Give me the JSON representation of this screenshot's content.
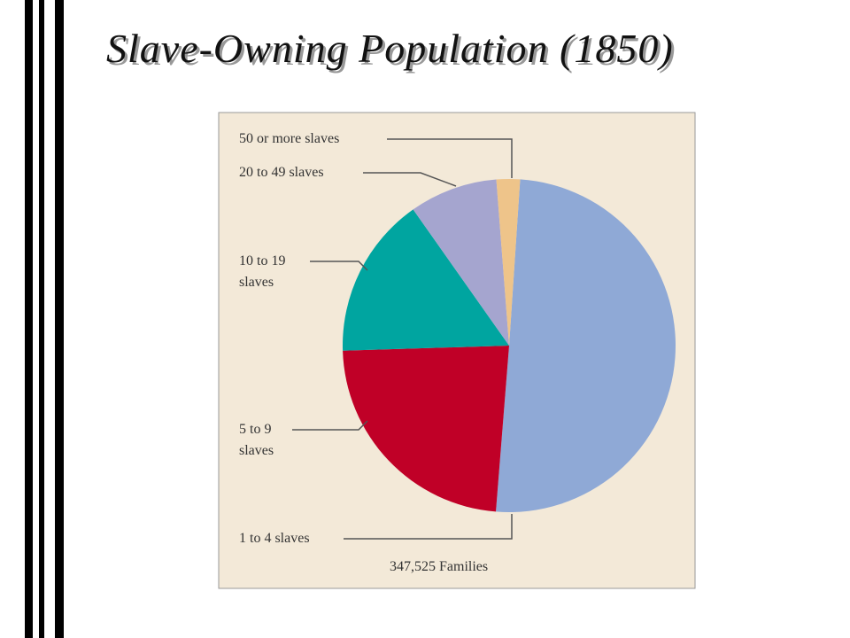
{
  "chart_data": {
    "type": "pie",
    "title": "Slave-Owning Population (1850)",
    "categories": [
      "1 to 4 slaves",
      "5 to 9 slaves",
      "10 to 19 slaves",
      "20 to 49 slaves",
      "50 or more slaves"
    ],
    "values": [
      174503,
      80765,
      54595,
      29733,
      7929
    ],
    "colors": [
      "#8fa9d6",
      "#c00027",
      "#00a5a0",
      "#a5a5cf",
      "#eec48a"
    ],
    "note": "347,525 Families"
  }
}
